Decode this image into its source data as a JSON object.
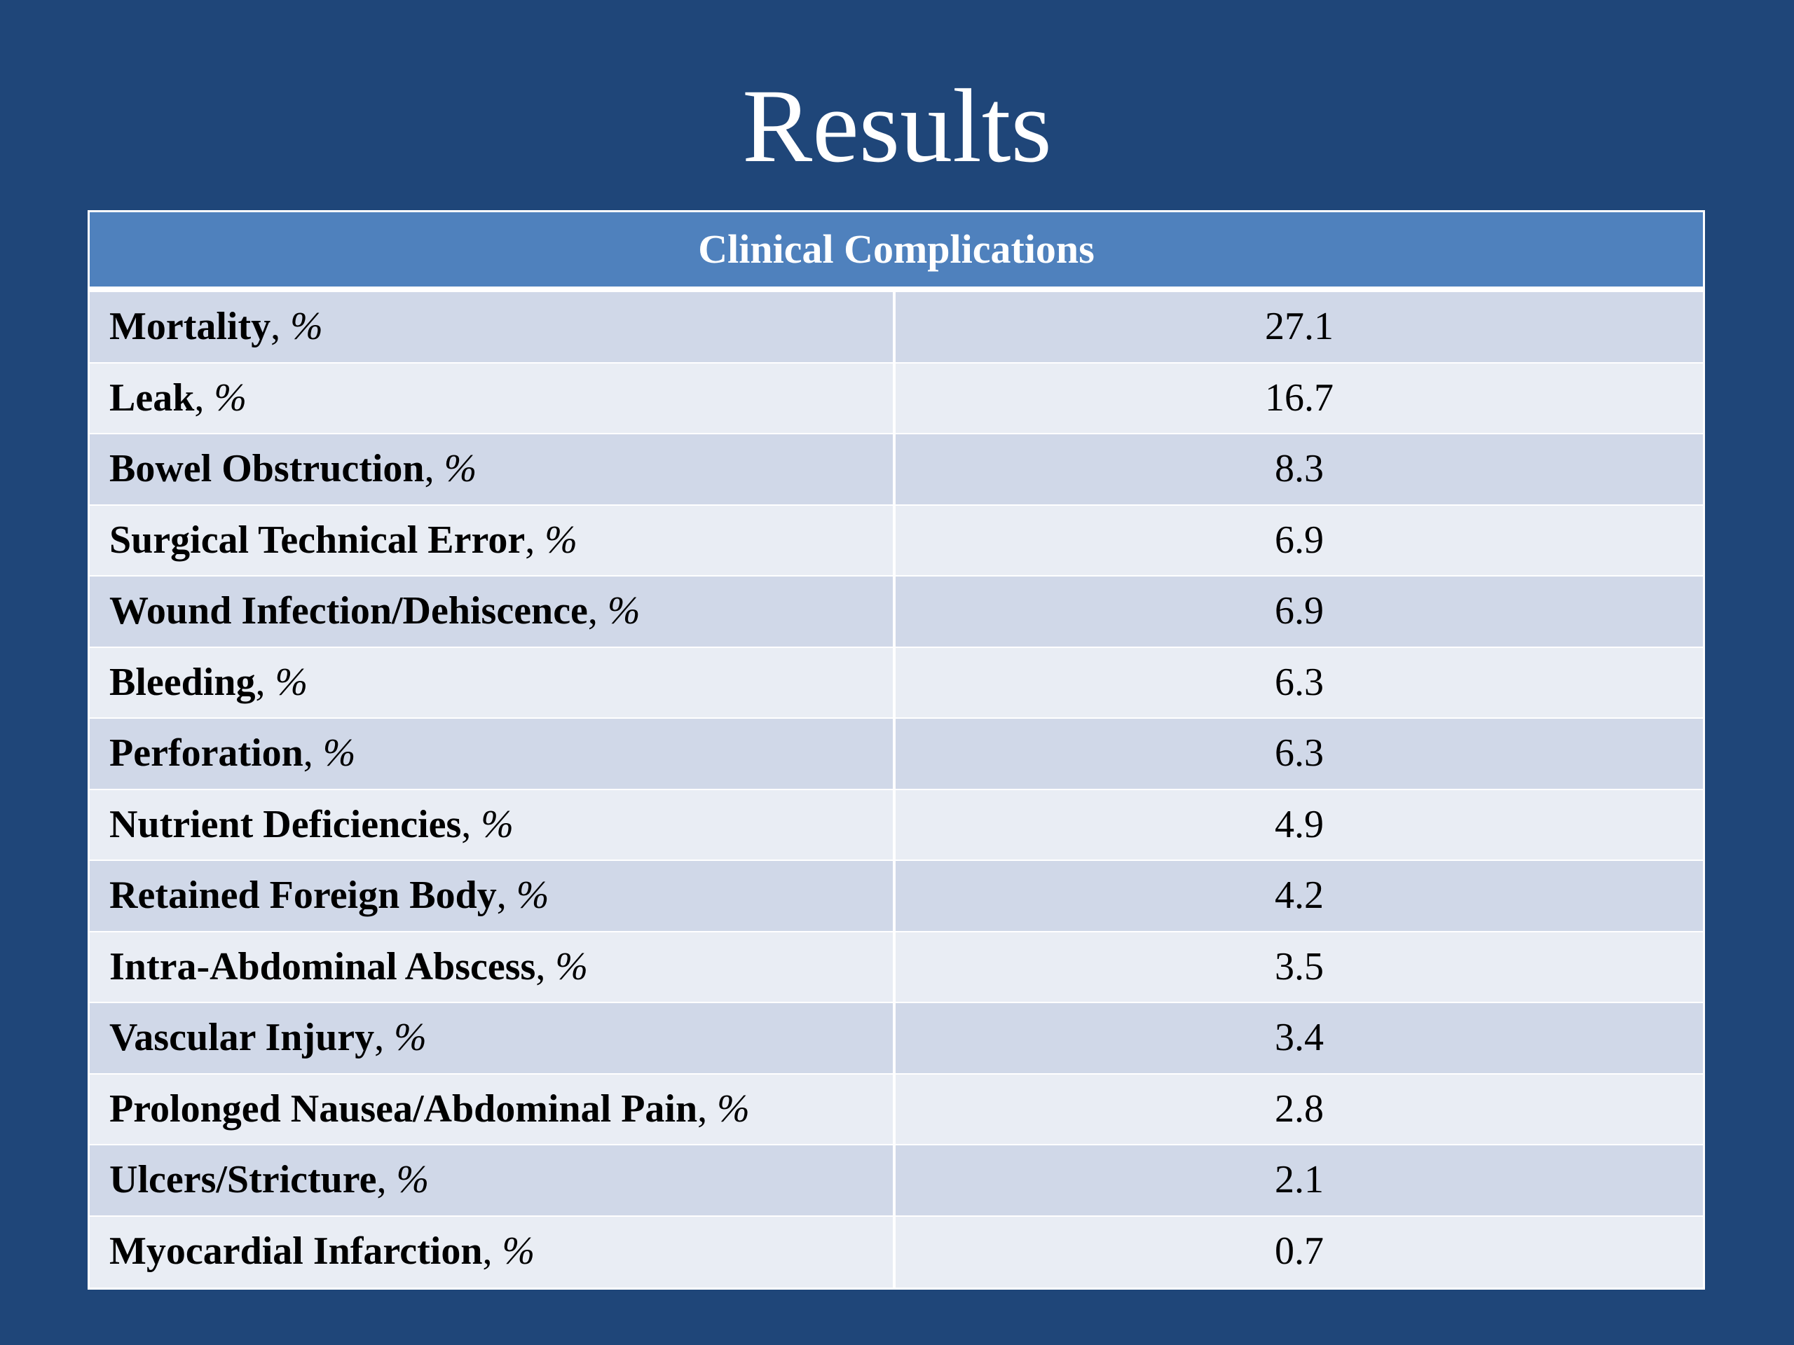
{
  "slide": {
    "title": "Results"
  },
  "table": {
    "header": "Clinical Complications",
    "rows": [
      {
        "label": "Mortality",
        "unit": "%",
        "value": "27.1"
      },
      {
        "label": "Leak",
        "unit": "%",
        "value": "16.7"
      },
      {
        "label": "Bowel Obstruction",
        "unit": "%",
        "value": "8.3"
      },
      {
        "label": "Surgical Technical Error",
        "unit": "%",
        "value": "6.9"
      },
      {
        "label": "Wound Infection/Dehiscence",
        "unit": "%",
        "value": "6.9"
      },
      {
        "label": "Bleeding",
        "unit": "%",
        "value": "6.3"
      },
      {
        "label": "Perforation",
        "unit": "%",
        "value": "6.3"
      },
      {
        "label": "Nutrient Deficiencies",
        "unit": "%",
        "value": "4.9"
      },
      {
        "label": "Retained Foreign Body",
        "unit": "%",
        "value": "4.2"
      },
      {
        "label": "Intra-Abdominal Abscess",
        "unit": "%",
        "value": "3.5"
      },
      {
        "label": "Vascular Injury",
        "unit": "%",
        "value": "3.4"
      },
      {
        "label": "Prolonged Nausea/Abdominal Pain",
        "unit": "%",
        "value": "2.8"
      },
      {
        "label": "Ulcers/Stricture",
        "unit": "%",
        "value": "2.1"
      },
      {
        "label": "Myocardial Infarction",
        "unit": "%",
        "value": "0.7"
      }
    ]
  },
  "colors": {
    "background": "#1f4679",
    "header": "#4f81bd",
    "row_odd": "#d0d8e8",
    "row_even": "#e9edf4"
  }
}
